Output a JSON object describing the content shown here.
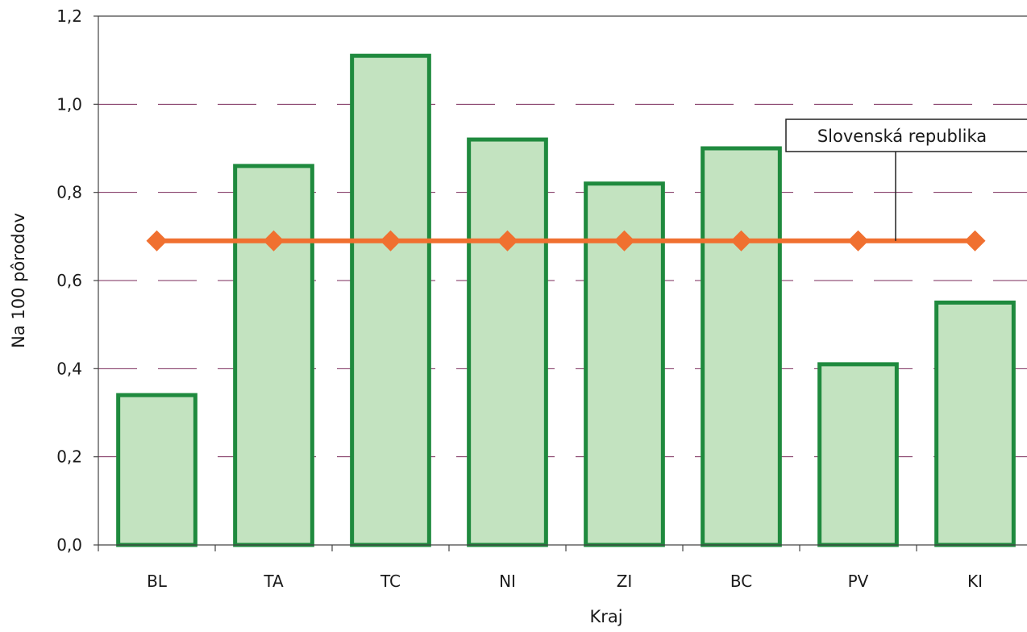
{
  "chart_data": {
    "type": "bar",
    "categories": [
      "BL",
      "TA",
      "TC",
      "NI",
      "ZI",
      "BC",
      "PV",
      "KI"
    ],
    "series": [
      {
        "type": "bar",
        "values": [
          0.34,
          0.86,
          1.11,
          0.92,
          0.82,
          0.9,
          0.41,
          0.55
        ]
      },
      {
        "type": "line",
        "name": "Slovenská republika",
        "values": [
          0.69,
          0.69,
          0.69,
          0.69,
          0.69,
          0.69,
          0.69,
          0.69
        ]
      }
    ],
    "xlabel": "Kraj",
    "ylabel": "Na 100 pôrodov",
    "ylim": [
      0,
      1.2
    ],
    "yticks": [
      0.0,
      0.2,
      0.4,
      0.6,
      0.8,
      1.0,
      1.2
    ],
    "ytick_labels": [
      "0,0",
      "0,2",
      "0,4",
      "0,6",
      "0,8",
      "1,0",
      "1,2"
    ],
    "grid": true,
    "colors": {
      "bar_fill": "#c3e3c0",
      "bar_stroke": "#1f8a3e",
      "line": "#f07030",
      "grid": "#7a2a5a",
      "axis": "#444444"
    }
  }
}
